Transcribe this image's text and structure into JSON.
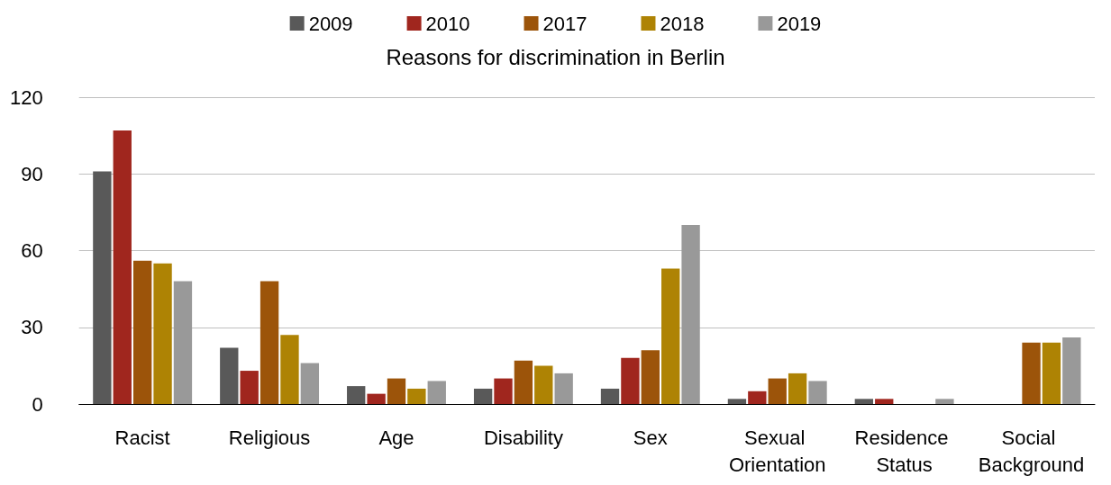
{
  "chart_data": {
    "type": "bar",
    "title": "Reasons for discrimination in Berlin",
    "categories": [
      "Racist",
      "Religious",
      "Age",
      "Disability",
      "Sex",
      "Sexual Orientation",
      "Residence Status",
      "Social Background"
    ],
    "series": [
      {
        "name": "2009",
        "color": "#595959",
        "values": [
          91,
          22,
          7,
          6,
          6,
          2,
          2,
          null
        ]
      },
      {
        "name": "2010",
        "color": "#a0261e",
        "values": [
          107,
          13,
          4,
          10,
          18,
          5,
          2,
          null
        ]
      },
      {
        "name": "2017",
        "color": "#9c540a",
        "values": [
          56,
          48,
          10,
          17,
          21,
          10,
          0,
          24
        ]
      },
      {
        "name": "2018",
        "color": "#ae8304",
        "values": [
          55,
          27,
          6,
          15,
          53,
          12,
          0,
          24
        ]
      },
      {
        "name": "2019",
        "color": "#999999",
        "values": [
          48,
          16,
          9,
          12,
          70,
          9,
          2,
          26
        ]
      }
    ],
    "ylim": [
      0,
      120
    ],
    "yticks": [
      0,
      30,
      60,
      90,
      120
    ],
    "grid": "y",
    "legend": "top"
  }
}
